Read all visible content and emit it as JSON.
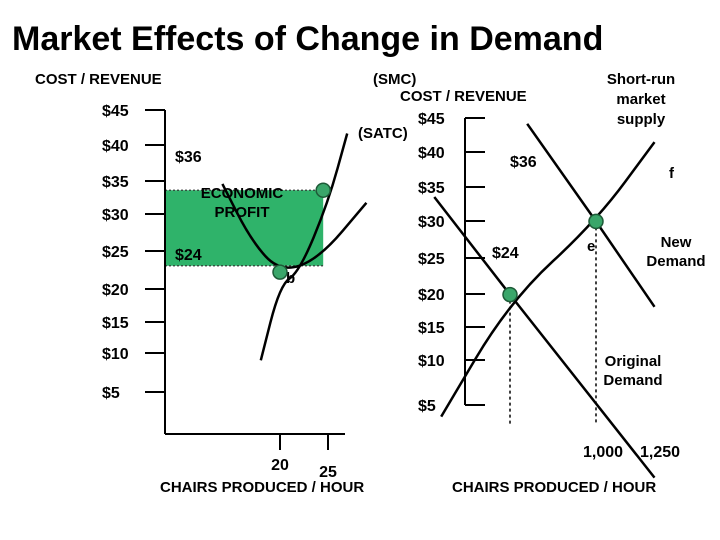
{
  "title": "Market Effects of Change in Demand",
  "chart_data": [
    {
      "type": "line",
      "ylabel": "COST / REVENUE",
      "xlabel": "CHAIRS PRODUCED  / HOUR",
      "y_ticks": [
        "$45",
        "$40",
        "$35",
        "$30",
        "$25",
        "$20",
        "$15",
        "$10",
        "$5"
      ],
      "y_tick_values": [
        45,
        40,
        35,
        30,
        25,
        20,
        15,
        10,
        5
      ],
      "x_ticks": [
        "20",
        "25"
      ],
      "x_tick_values": [
        20,
        25
      ],
      "series": [
        {
          "name": "(SMC)",
          "points": [
            [
              18,
              9
            ],
            [
              20,
              21
            ],
            [
              22,
              23
            ],
            [
              25,
              34
            ],
            [
              27,
              45
            ]
          ]
        },
        {
          "name": "(SATC)",
          "points": [
            [
              14,
              37
            ],
            [
              17,
              28
            ],
            [
              20,
              23
            ],
            [
              24,
              25
            ],
            [
              29,
              34
            ]
          ]
        }
      ],
      "annotations": {
        "price_high": "$36",
        "price_low": "$24",
        "region": "ECONOMIC PROFIT",
        "point": "b"
      }
    },
    {
      "type": "line",
      "ylabel": "COST / REVENUE",
      "xlabel": "CHAIRS PRODUCED  / HOUR",
      "y_ticks": [
        "$45",
        "$40",
        "$35",
        "$30",
        "$25",
        "$20",
        "$15",
        "$10",
        "$5"
      ],
      "y_tick_values": [
        45,
        40,
        35,
        30,
        25,
        20,
        15,
        10,
        5
      ],
      "x_ticks": [
        "1,000",
        "1,250"
      ],
      "x_tick_values": [
        1000,
        1250
      ],
      "series": [
        {
          "name": "Short-run market supply",
          "points": [
            [
              800,
              4
            ],
            [
              1000,
              23
            ],
            [
              1250,
              36
            ],
            [
              1420,
              49
            ]
          ]
        },
        {
          "name": "Original Demand",
          "points": [
            [
              780,
              40
            ],
            [
              1000,
              24
            ],
            [
              1420,
              -6
            ]
          ]
        },
        {
          "name": "New Demand",
          "points": [
            [
              1050,
              52
            ],
            [
              1250,
              36
            ],
            [
              1420,
              22
            ]
          ]
        }
      ],
      "annotations": {
        "price_high": "$36",
        "price_low": "$24",
        "point_e": "e",
        "point_f": "f"
      }
    }
  ]
}
